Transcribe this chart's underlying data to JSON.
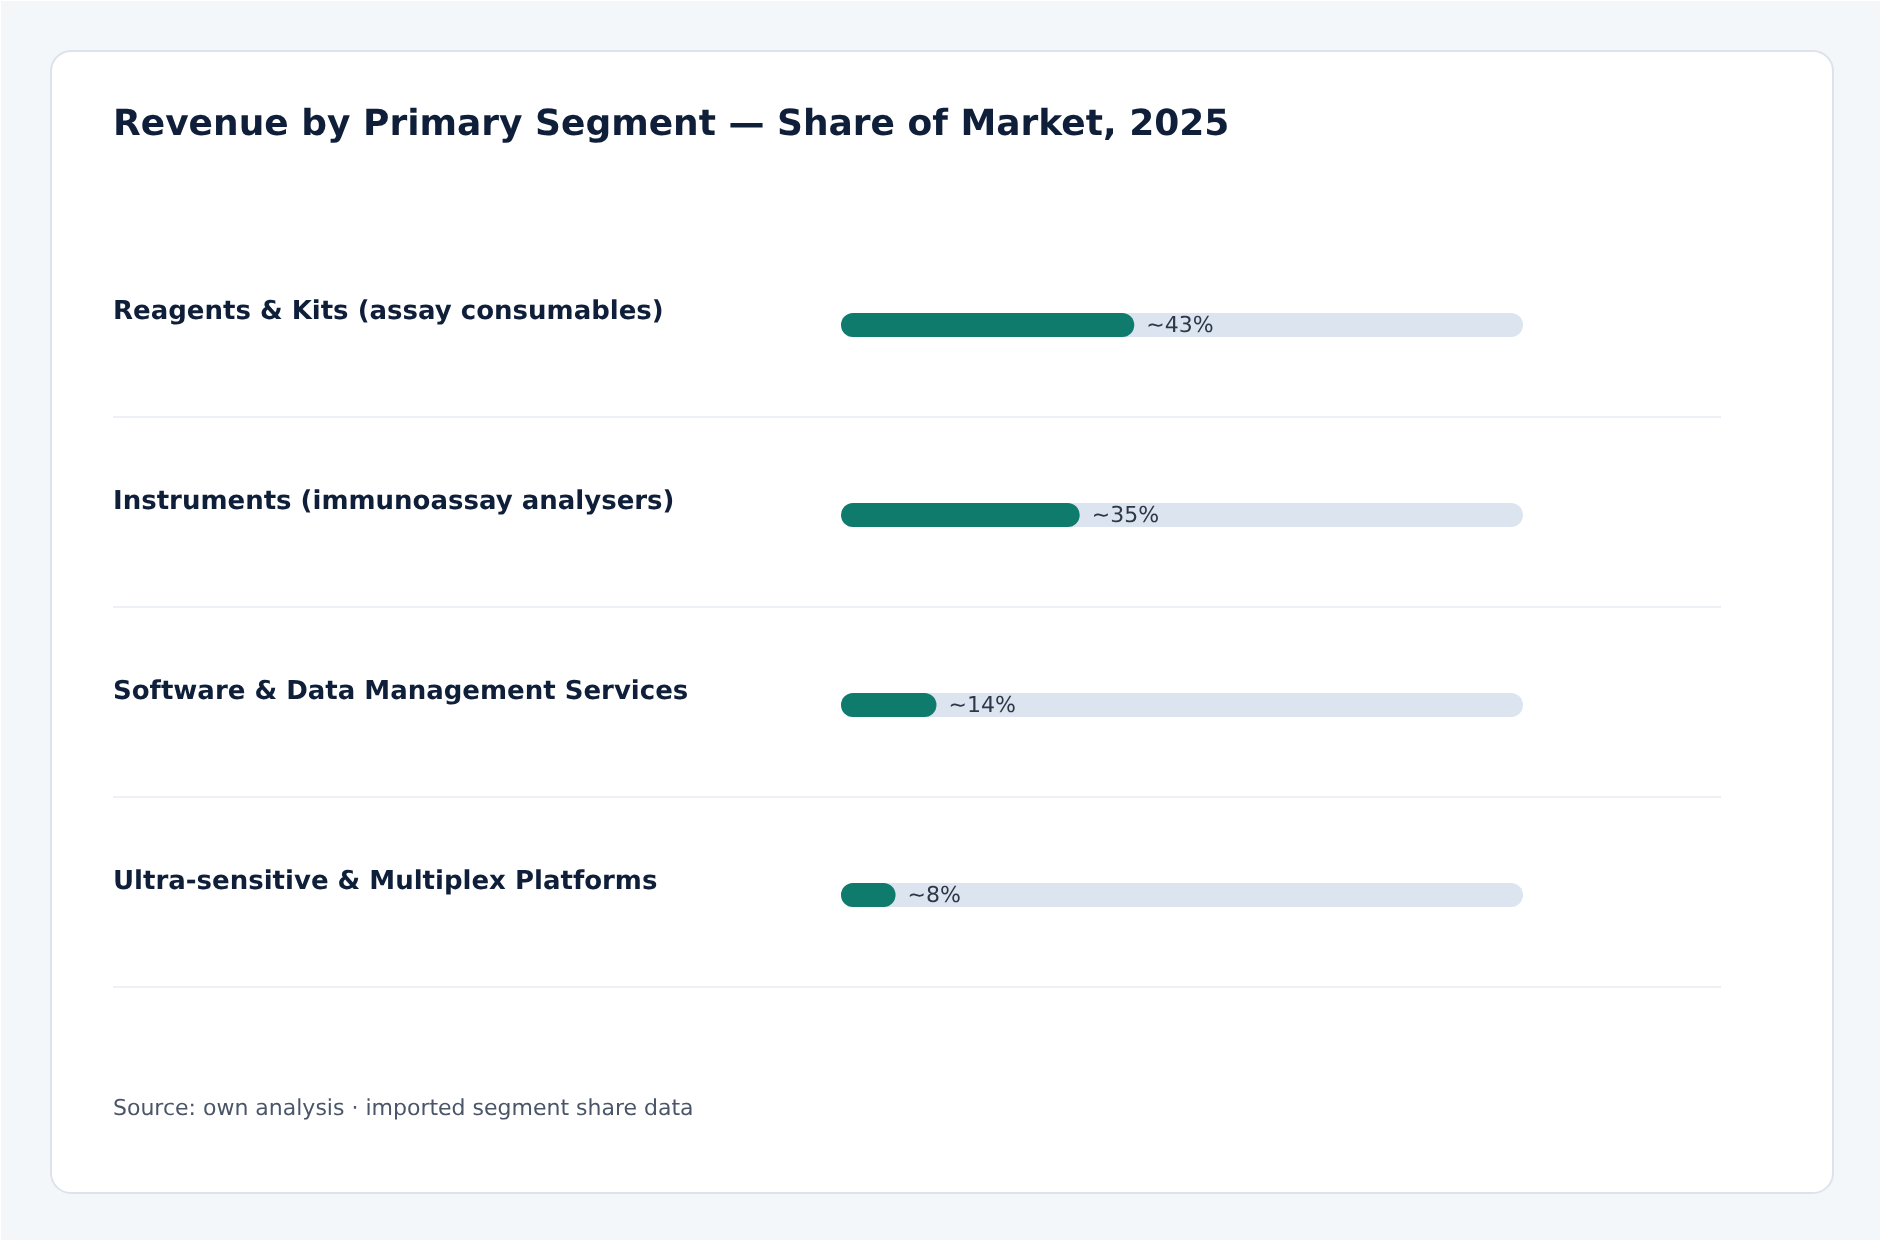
{
  "chart_data": {
    "type": "bar",
    "orientation": "horizontal",
    "title": "Revenue by Primary Segment — Share of Market, 2025",
    "categories": [
      "Reagents & Kits (assay consumables)",
      "Instruments (immunoassay analysers)",
      "Software & Data Management Services",
      "Ultra-sensitive & Multiplex Platforms"
    ],
    "values": [
      43,
      35,
      14,
      8
    ],
    "value_labels": [
      "~43%",
      "~35%",
      "~14%",
      "~8%"
    ],
    "color": "#0f7b6c",
    "xlim": [
      0,
      100
    ],
    "annotations": [
      "Source: own analysis · imported segment share data"
    ]
  }
}
